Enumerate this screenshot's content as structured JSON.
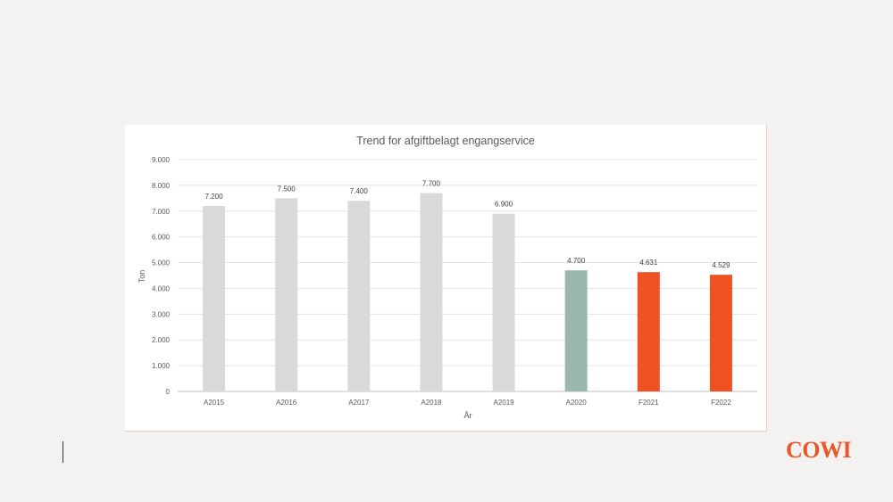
{
  "chart_data": {
    "type": "bar",
    "title": "Trend for afgiftbelagt engangservice",
    "xlabel": "År",
    "ylabel": "Ton",
    "ylim": [
      0,
      9000
    ],
    "yticks": [
      0,
      1000,
      2000,
      3000,
      4000,
      5000,
      6000,
      7000,
      8000,
      9000
    ],
    "ytick_labels": [
      "0",
      "1.000",
      "2.000",
      "3.000",
      "4.000",
      "5.000",
      "6.000",
      "7.000",
      "8.000",
      "9.000"
    ],
    "categories": [
      "A2015",
      "A2016",
      "A2017",
      "A2018",
      "A2019",
      "A2020",
      "F2021",
      "F2022"
    ],
    "values": [
      7200,
      7500,
      7400,
      7700,
      6900,
      4700,
      4631,
      4529
    ],
    "value_labels": [
      "7.200",
      "7.500",
      "7.400",
      "7.700",
      "6.900",
      "4.700",
      "4.631",
      "4.529"
    ],
    "bar_colors": [
      "#d9d9d9",
      "#d9d9d9",
      "#d9d9d9",
      "#d9d9d9",
      "#d9d9d9",
      "#9bb8ad",
      "#f05123",
      "#f05123"
    ],
    "grid": true
  },
  "logo": {
    "text": "COWI",
    "color": "#e8562a"
  }
}
